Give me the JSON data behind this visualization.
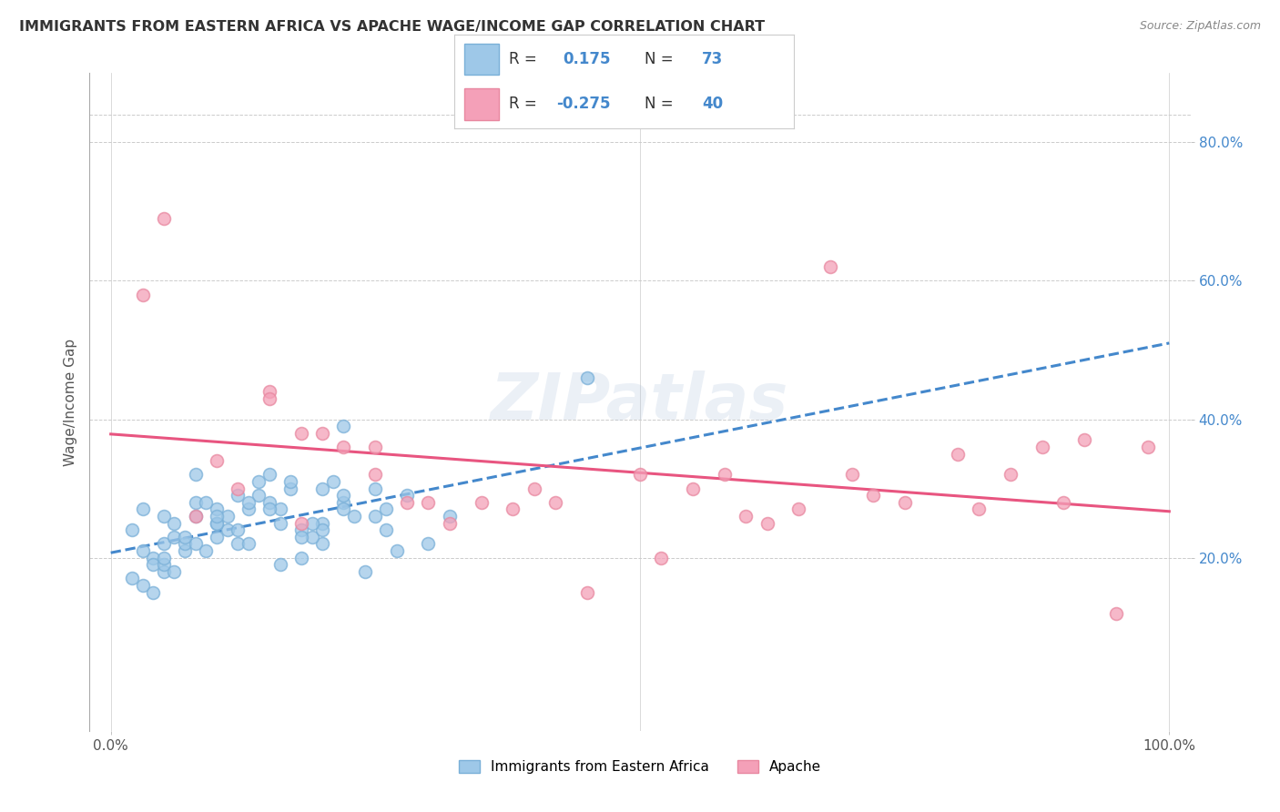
{
  "title": "IMMIGRANTS FROM EASTERN AFRICA VS APACHE WAGE/INCOME GAP CORRELATION CHART",
  "source": "Source: ZipAtlas.com",
  "ylabel": "Wage/Income Gap",
  "legend1_label": "Immigrants from Eastern Africa",
  "legend2_label": "Apache",
  "R1": 0.175,
  "N1": 73,
  "R2": -0.275,
  "N2": 40,
  "blue_fill": "#9ec8e8",
  "blue_edge": "#7ab0d8",
  "pink_fill": "#f4a0b8",
  "pink_edge": "#e888a0",
  "line_blue": "#4488cc",
  "line_pink": "#e85580",
  "background": "#ffffff",
  "grid_color": "#cccccc",
  "ytick_color": "#4488cc",
  "title_color": "#333333",
  "source_color": "#888888",
  "legend_text_color": "#333333",
  "legend_val_color": "#4488cc",
  "blue_x": [
    0.5,
    1.0,
    1.5,
    2.0,
    2.5,
    0.3,
    0.8,
    1.2,
    1.8,
    2.2,
    0.4,
    0.6,
    1.0,
    1.4,
    1.6,
    2.0,
    2.5,
    3.0,
    0.5,
    0.7,
    1.1,
    1.3,
    1.7,
    1.9,
    2.3,
    0.2,
    0.5,
    0.8,
    1.0,
    1.5,
    2.0,
    2.8,
    0.3,
    0.6,
    0.9,
    1.2,
    1.6,
    2.1,
    2.6,
    3.2,
    0.4,
    0.7,
    1.1,
    1.4,
    1.8,
    2.2,
    2.7,
    0.3,
    0.5,
    0.8,
    1.0,
    1.3,
    1.7,
    2.0,
    2.4,
    0.2,
    0.5,
    0.7,
    1.0,
    1.3,
    1.6,
    1.9,
    2.2,
    2.6,
    0.4,
    0.6,
    0.9,
    1.2,
    1.5,
    1.8,
    4.5,
    2.2,
    0.8
  ],
  "blue_y": [
    22.0,
    25.0,
    28.0,
    22.0,
    30.0,
    27.0,
    32.0,
    29.0,
    24.0,
    28.0,
    20.0,
    23.0,
    27.0,
    31.0,
    25.0,
    30.0,
    26.0,
    22.0,
    18.0,
    21.0,
    24.0,
    27.0,
    30.0,
    23.0,
    26.0,
    24.0,
    26.0,
    28.0,
    23.0,
    32.0,
    25.0,
    29.0,
    21.0,
    25.0,
    28.0,
    22.0,
    27.0,
    31.0,
    24.0,
    26.0,
    19.0,
    22.0,
    26.0,
    29.0,
    23.0,
    27.0,
    21.0,
    16.0,
    19.0,
    22.0,
    25.0,
    28.0,
    31.0,
    24.0,
    18.0,
    17.0,
    20.0,
    23.0,
    26.0,
    22.0,
    19.0,
    25.0,
    29.0,
    27.0,
    15.0,
    18.0,
    21.0,
    24.0,
    27.0,
    20.0,
    46.0,
    39.0,
    26.0
  ],
  "pink_x": [
    1.0,
    0.5,
    0.3,
    1.5,
    2.0,
    2.5,
    3.0,
    4.0,
    5.0,
    6.0,
    7.0,
    8.0,
    8.5,
    9.0,
    9.5,
    1.2,
    1.8,
    2.5,
    3.5,
    4.5,
    5.5,
    6.5,
    7.5,
    8.2,
    8.8,
    1.5,
    2.2,
    3.2,
    4.2,
    5.2,
    6.2,
    7.2,
    0.8,
    1.8,
    2.8,
    3.8,
    5.8,
    6.8,
    9.2,
    9.8
  ],
  "pink_y": [
    34.0,
    69.0,
    58.0,
    44.0,
    38.0,
    36.0,
    28.0,
    30.0,
    32.0,
    26.0,
    32.0,
    35.0,
    32.0,
    28.0,
    12.0,
    30.0,
    25.0,
    32.0,
    28.0,
    15.0,
    30.0,
    27.0,
    28.0,
    27.0,
    36.0,
    43.0,
    36.0,
    25.0,
    28.0,
    20.0,
    25.0,
    29.0,
    26.0,
    38.0,
    28.0,
    27.0,
    32.0,
    62.0,
    37.0,
    36.0
  ],
  "xlim_pct": [
    0,
    100
  ],
  "ylim": [
    -5,
    90
  ],
  "ytick_vals": [
    20,
    40,
    60,
    80
  ],
  "ytick_labels": [
    "20.0%",
    "40.0%",
    "60.0%",
    "80.0%"
  ],
  "xtick_vals": [
    0,
    100
  ],
  "xtick_labels": [
    "0.0%",
    "100.0%"
  ]
}
